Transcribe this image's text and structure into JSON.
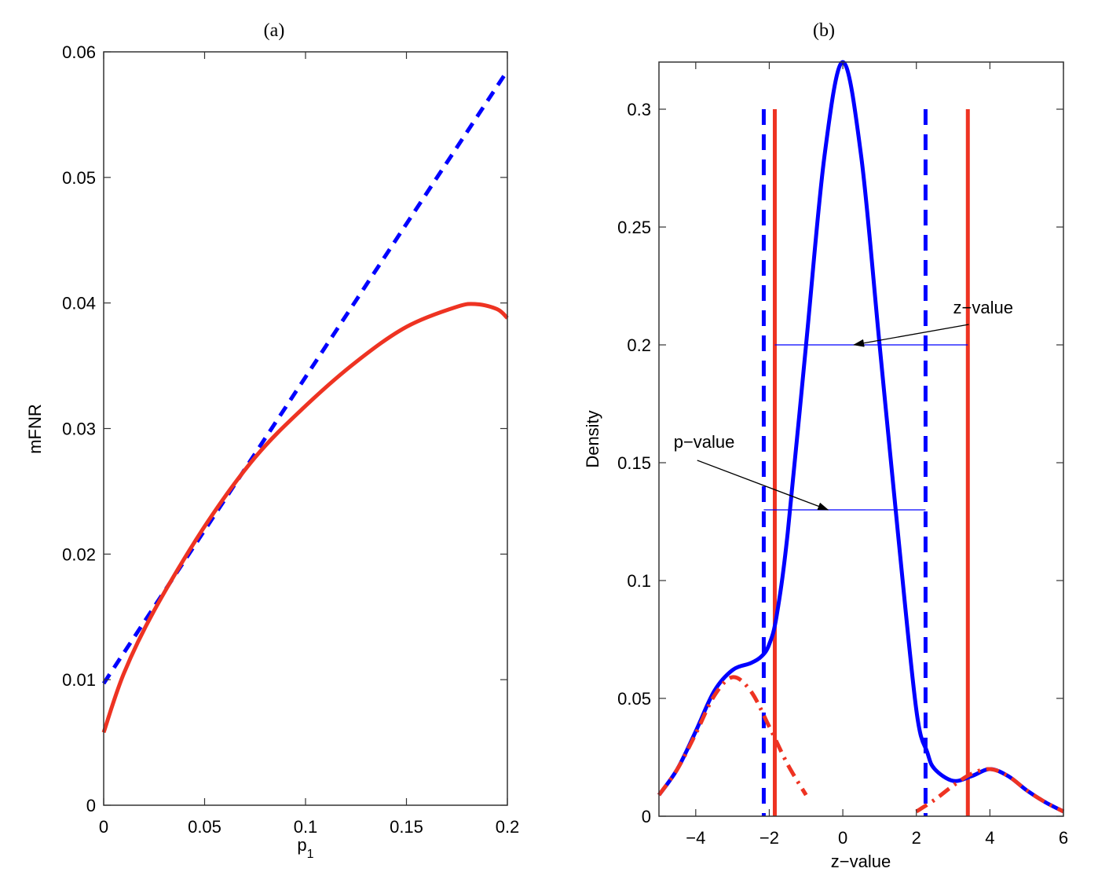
{
  "chart_data": [
    {
      "id": "a",
      "type": "line",
      "title": "(a)",
      "xlabel": "p",
      "xlabel_sub": "1",
      "ylabel": "mFNR",
      "xlim": [
        0,
        0.2
      ],
      "ylim": [
        0,
        0.06
      ],
      "xticks": [
        0,
        0.05,
        0.1,
        0.15,
        0.2
      ],
      "xtick_labels": [
        "0",
        "0.05",
        "0.1",
        "0.15",
        "0.2"
      ],
      "yticks": [
        0,
        0.01,
        0.02,
        0.03,
        0.04,
        0.05,
        0.06
      ],
      "ytick_labels": [
        "0",
        "0.01",
        "0.02",
        "0.03",
        "0.04",
        "0.05",
        "0.06"
      ],
      "grid": false,
      "series": [
        {
          "name": "blue-dashed",
          "color": "#0000ff",
          "style": "dashed",
          "x": [
            0,
            0.025,
            0.05,
            0.075,
            0.1,
            0.125,
            0.15,
            0.175,
            0.2
          ],
          "y": [
            0.0097,
            0.0158,
            0.0219,
            0.028,
            0.0341,
            0.0402,
            0.0463,
            0.0524,
            0.0585
          ]
        },
        {
          "name": "red-solid",
          "color": "#ee3322",
          "style": "solid",
          "x": [
            0,
            0.01,
            0.025,
            0.05,
            0.075,
            0.1,
            0.125,
            0.15,
            0.175,
            0.185,
            0.195,
            0.2
          ],
          "y": [
            0.0058,
            0.0105,
            0.0155,
            0.0222,
            0.0277,
            0.0318,
            0.0353,
            0.0381,
            0.0397,
            0.0399,
            0.0395,
            0.0388
          ]
        }
      ]
    },
    {
      "id": "b",
      "type": "line",
      "title": "(b)",
      "xlabel": "z−value",
      "ylabel": "Density",
      "xlim": [
        -5,
        6
      ],
      "ylim": [
        0,
        0.32
      ],
      "xticks": [
        -4,
        -2,
        0,
        2,
        4,
        6
      ],
      "xtick_labels": [
        "−4",
        "−2",
        "0",
        "2",
        "4",
        "6"
      ],
      "yticks": [
        0,
        0.05,
        0.1,
        0.15,
        0.2,
        0.25,
        0.3
      ],
      "ytick_labels": [
        "0",
        "0.05",
        "0.1",
        "0.15",
        "0.2",
        "0.25",
        "0.3"
      ],
      "grid": false,
      "series": [
        {
          "name": "mixture-density",
          "color": "#0000ff",
          "style": "solid",
          "x": [
            -5,
            -4.5,
            -4,
            -3.5,
            -3,
            -2.5,
            -2.2,
            -2,
            -1.8,
            -1.5,
            -1,
            -0.5,
            0,
            0.5,
            1,
            1.5,
            2,
            2.3,
            2.5,
            3,
            3.5,
            4,
            4.5,
            5,
            5.5,
            6
          ],
          "y": [
            0.009,
            0.02,
            0.036,
            0.053,
            0.062,
            0.065,
            0.068,
            0.073,
            0.085,
            0.12,
            0.2,
            0.28,
            0.32,
            0.28,
            0.2,
            0.12,
            0.045,
            0.027,
            0.02,
            0.015,
            0.017,
            0.02,
            0.017,
            0.011,
            0.006,
            0.002
          ]
        },
        {
          "name": "left-alternative-component",
          "color": "#ee3322",
          "style": "dash-dot",
          "x": [
            -5,
            -4.5,
            -4,
            -3.5,
            -3,
            -2.5,
            -2,
            -1.5,
            -1
          ],
          "y": [
            0.009,
            0.02,
            0.035,
            0.051,
            0.059,
            0.053,
            0.038,
            0.022,
            0.009
          ]
        },
        {
          "name": "right-alternative-component",
          "color": "#ee3322",
          "style": "dash-dot",
          "x": [
            2,
            2.5,
            3,
            3.5,
            4,
            4.5,
            5,
            5.5,
            6
          ],
          "y": [
            0.002,
            0.007,
            0.013,
            0.018,
            0.02,
            0.017,
            0.011,
            0.006,
            0.002
          ]
        }
      ],
      "vertical_lines": [
        {
          "name": "p-value-lower-threshold",
          "x": -2.15,
          "y_top": 0.3,
          "color": "#0000ff",
          "style": "dashed"
        },
        {
          "name": "p-value-upper-threshold",
          "x": 2.25,
          "y_top": 0.3,
          "color": "#0000ff",
          "style": "dashed"
        },
        {
          "name": "z-value-lower-threshold",
          "x": -1.85,
          "y_top": 0.3,
          "color": "#ee3322",
          "style": "solid"
        },
        {
          "name": "z-value-upper-threshold",
          "x": 3.4,
          "y_top": 0.3,
          "color": "#ee3322",
          "style": "solid"
        }
      ],
      "horizontal_lines": [
        {
          "name": "z-value-interval",
          "x0": -1.85,
          "x1": 3.4,
          "y": 0.2,
          "color": "#0000ff"
        },
        {
          "name": "p-value-interval",
          "x0": -2.15,
          "x1": 2.25,
          "y": 0.13,
          "color": "#0000ff"
        }
      ],
      "annotations": [
        {
          "name": "z-value-annotation",
          "text": "z−value",
          "text_x": 3.0,
          "text_y": 0.212,
          "arrow_to_x": 0.3,
          "arrow_to_y": 0.2
        },
        {
          "name": "p-value-annotation",
          "text": "p−value",
          "text_x": -4.6,
          "text_y": 0.155,
          "arrow_to_x": -0.4,
          "arrow_to_y": 0.13
        }
      ]
    }
  ]
}
